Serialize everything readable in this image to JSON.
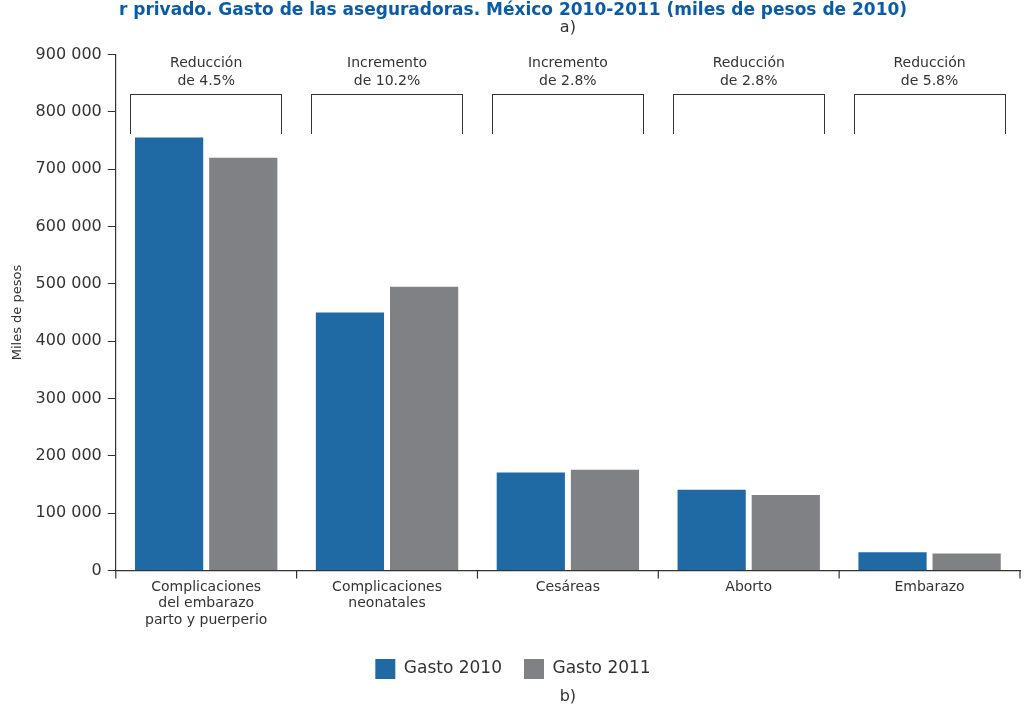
{
  "chart_data": {
    "type": "bar",
    "title": "r privado. Gasto de las aseguradoras. México 2010-2011 (miles de pesos de 2010)",
    "ylabel": "Miles de pesos",
    "categories": [
      "Complicaciones\ndel embarazo\nparto y puerperio",
      "Complicaciones\nneonatales",
      "Cesáreas",
      "Aborto",
      "Embarazo"
    ],
    "series": [
      {
        "name": "Gasto 2010",
        "color": "#1f6aa5",
        "values": [
          755000,
          450000,
          171000,
          141000,
          32000
        ]
      },
      {
        "name": "Gasto 2011",
        "color": "#808184",
        "values": [
          720000,
          495000,
          176000,
          132000,
          30000
        ]
      }
    ],
    "ylim": [
      0,
      900000
    ],
    "yticks": [
      {
        "value": 0,
        "label": "0"
      },
      {
        "value": 100000,
        "label": "100 000"
      },
      {
        "value": 200000,
        "label": "200 000"
      },
      {
        "value": 300000,
        "label": "300 000"
      },
      {
        "value": 400000,
        "label": "400 000"
      },
      {
        "value": 500000,
        "label": "500 000"
      },
      {
        "value": 600000,
        "label": "600 000"
      },
      {
        "value": 700000,
        "label": "700 000"
      },
      {
        "value": 800000,
        "label": "800 000"
      },
      {
        "value": 900000,
        "label": "900 000"
      }
    ],
    "grid": false,
    "legend": "bottom",
    "annotations": [
      "a)",
      "Reducción\nde 4.5%",
      "Incremento\nde 10.2%",
      "Incremento\nde 2.8%",
      "Reducción\nde 2.8%",
      "Reducción\nde 5.8%",
      "b)"
    ]
  }
}
